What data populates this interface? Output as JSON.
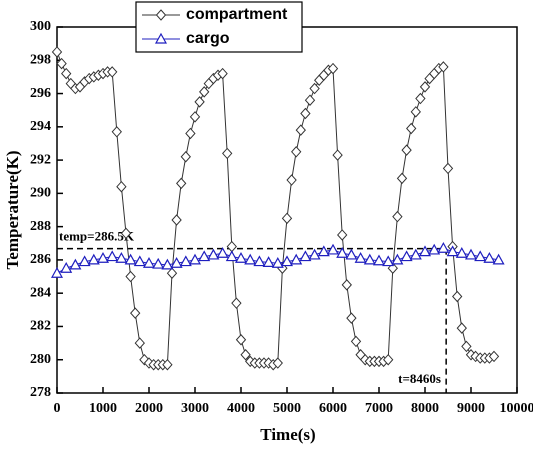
{
  "chart_data": {
    "type": "line",
    "x_label": "Time(s)",
    "y_label": "Temperature(K)",
    "xlim": [
      0,
      10000
    ],
    "xticks": [
      0,
      1000,
      2000,
      3000,
      4000,
      5000,
      6000,
      7000,
      8000,
      9000,
      10000
    ],
    "ylim": [
      278,
      300
    ],
    "yticks": [
      278,
      280,
      282,
      284,
      286,
      288,
      290,
      292,
      294,
      296,
      298,
      300
    ],
    "annotations": [
      "temp=286.5K",
      "t=8460s"
    ],
    "hline": 286.5,
    "vline": 8460,
    "series": [
      {
        "name": "compartment",
        "color": "#333333",
        "marker": "diamond",
        "x": [
          0,
          100,
          200,
          300,
          400,
          500,
          600,
          700,
          800,
          900,
          1000,
          1100,
          1200,
          1300,
          1400,
          1500,
          1600,
          1700,
          1800,
          1900,
          2000,
          2100,
          2200,
          2300,
          2400,
          2500,
          2600,
          2700,
          2800,
          2900,
          3000,
          3100,
          3200,
          3300,
          3400,
          3500,
          3600,
          3700,
          3800,
          3900,
          4000,
          4100,
          4200,
          4300,
          4400,
          4500,
          4600,
          4700,
          4800,
          4900,
          5000,
          5100,
          5200,
          5300,
          5400,
          5500,
          5600,
          5700,
          5800,
          5900,
          6000,
          6100,
          6200,
          6300,
          6400,
          6500,
          6600,
          6700,
          6800,
          6900,
          7000,
          7100,
          7200,
          7300,
          7400,
          7500,
          7600,
          7700,
          7800,
          7900,
          8000,
          8100,
          8200,
          8300,
          8400,
          8500,
          8600,
          8700,
          8800,
          8900,
          9000,
          9100,
          9200,
          9300,
          9400,
          9500
        ],
        "values": [
          298.5,
          297.8,
          297.2,
          296.6,
          296.3,
          296.4,
          296.7,
          296.9,
          297.0,
          297.1,
          297.2,
          297.3,
          297.3,
          293.7,
          290.4,
          287.6,
          285.0,
          282.8,
          281.0,
          280.0,
          279.8,
          279.7,
          279.7,
          279.7,
          279.7,
          285.2,
          288.4,
          290.6,
          292.2,
          293.6,
          294.6,
          295.5,
          296.1,
          296.6,
          296.9,
          297.1,
          297.2,
          292.4,
          286.8,
          283.4,
          281.2,
          280.3,
          279.9,
          279.8,
          279.8,
          279.8,
          279.8,
          279.7,
          279.8,
          285.5,
          288.5,
          290.8,
          292.5,
          293.8,
          294.8,
          295.6,
          296.3,
          296.8,
          297.1,
          297.4,
          297.5,
          292.3,
          287.5,
          284.5,
          282.5,
          281.1,
          280.3,
          280.0,
          279.9,
          279.9,
          279.9,
          279.9,
          280.0,
          285.5,
          288.6,
          290.9,
          292.6,
          293.9,
          294.9,
          295.7,
          296.4,
          296.9,
          297.2,
          297.5,
          297.6,
          291.5,
          286.8,
          283.8,
          281.9,
          280.8,
          280.3,
          280.2,
          280.1,
          280.1,
          280.1,
          280.2
        ]
      },
      {
        "name": "cargo",
        "color": "#1f1fbf",
        "marker": "triangle",
        "x": [
          0,
          200,
          400,
          600,
          800,
          1000,
          1200,
          1400,
          1600,
          1800,
          2000,
          2200,
          2400,
          2600,
          2800,
          3000,
          3200,
          3400,
          3600,
          3800,
          4000,
          4200,
          4400,
          4600,
          4800,
          5000,
          5200,
          5400,
          5600,
          5800,
          6000,
          6200,
          6400,
          6600,
          6800,
          7000,
          7200,
          7400,
          7600,
          7800,
          8000,
          8200,
          8400,
          8600,
          8800,
          9000,
          9200,
          9400,
          9600
        ],
        "values": [
          285.2,
          285.5,
          285.7,
          285.9,
          286.0,
          286.1,
          286.2,
          286.1,
          286.0,
          285.9,
          285.8,
          285.75,
          285.7,
          285.8,
          285.9,
          286.0,
          286.2,
          286.3,
          286.4,
          286.2,
          286.1,
          286.0,
          285.9,
          285.85,
          285.8,
          285.9,
          286.0,
          286.2,
          286.3,
          286.5,
          286.6,
          286.4,
          286.3,
          286.1,
          286.0,
          285.95,
          285.9,
          286.0,
          286.2,
          286.3,
          286.5,
          286.6,
          286.7,
          286.5,
          286.4,
          286.3,
          286.2,
          286.1,
          286.0
        ]
      }
    ]
  }
}
